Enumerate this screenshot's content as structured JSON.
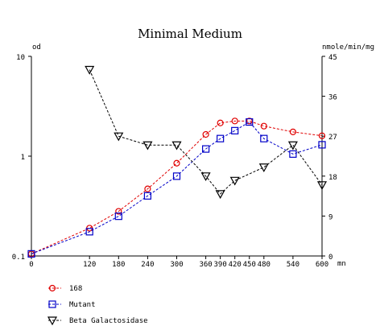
{
  "chart_data": {
    "type": "line",
    "title": "Minimal Medium",
    "x_unit": "mn",
    "left_axis": {
      "label": "od",
      "scale": "log",
      "range": [
        0.1,
        10
      ],
      "ticks": [
        "10",
        "1",
        "0.1"
      ],
      "tick_values": [
        10,
        1,
        0.1
      ]
    },
    "right_axis": {
      "label": "nmole/min/mg",
      "range": [
        0,
        45
      ],
      "ticks": [
        "45",
        "36",
        "27",
        "18",
        "9",
        "0"
      ],
      "tick_values": [
        45,
        36,
        27,
        18,
        9,
        0
      ]
    },
    "x_range": [
      0,
      600
    ],
    "x_ticks": [
      "0",
      "120",
      "180",
      "240",
      "300",
      "360",
      "390",
      "420",
      "450",
      "480",
      "540",
      "600"
    ],
    "x_tick_values": [
      0,
      120,
      180,
      240,
      300,
      360,
      390,
      420,
      450,
      480,
      540,
      600
    ],
    "series": [
      {
        "name": "168",
        "axis": "left",
        "marker": "circle",
        "color": "#e00000",
        "points": [
          [
            0,
            0.105
          ],
          [
            120,
            0.19
          ],
          [
            180,
            0.28
          ],
          [
            240,
            0.47
          ],
          [
            300,
            0.85
          ],
          [
            360,
            1.65
          ],
          [
            390,
            2.15
          ],
          [
            420,
            2.25
          ],
          [
            450,
            2.25
          ],
          [
            480,
            2.0
          ],
          [
            540,
            1.75
          ],
          [
            600,
            1.6
          ]
        ]
      },
      {
        "name": "Mutant",
        "axis": "left",
        "marker": "square",
        "color": "#0000c8",
        "points": [
          [
            0,
            0.105
          ],
          [
            120,
            0.175
          ],
          [
            180,
            0.25
          ],
          [
            240,
            0.4
          ],
          [
            300,
            0.63
          ],
          [
            360,
            1.18
          ],
          [
            390,
            1.5
          ],
          [
            420,
            1.8
          ],
          [
            450,
            2.2
          ],
          [
            480,
            1.5
          ],
          [
            540,
            1.05
          ],
          [
            600,
            1.3
          ]
        ]
      },
      {
        "name": "Beta Galactosidase",
        "axis": "right",
        "marker": "triangle-down",
        "color": "#000000",
        "points": [
          [
            120,
            42
          ],
          [
            180,
            27
          ],
          [
            240,
            25
          ],
          [
            300,
            25
          ],
          [
            360,
            18
          ],
          [
            390,
            14
          ],
          [
            420,
            17
          ],
          [
            480,
            20
          ],
          [
            540,
            25
          ],
          [
            600,
            16
          ]
        ]
      }
    ],
    "legend_position": "bottom-left"
  }
}
